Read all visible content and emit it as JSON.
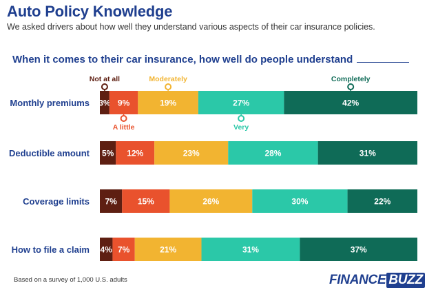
{
  "header": {
    "title": "Auto Policy Knowledge",
    "subtitle": "We asked drivers about how well they understand various aspects of their car insurance policies.",
    "question": "When it comes to their car insurance, how well do people understand"
  },
  "footer": {
    "footnote": "Based on a survey of 1,000 U.S. adults",
    "logo_part1": "FINANCE",
    "logo_part2": "BUZZ"
  },
  "colors": {
    "title": "#1f3f8f",
    "Not at all": "#5e1f12",
    "A little": "#e9522d",
    "Moderately": "#f2b431",
    "Very": "#2bc8a8",
    "Completely": "#0f6b57"
  },
  "chart_data": {
    "type": "bar",
    "orientation": "horizontal",
    "stacked": true,
    "unit": "%",
    "categories": [
      "Monthly premiums",
      "Deductible amount",
      "Coverage limits",
      "How to file a claim"
    ],
    "series": [
      {
        "name": "Not at all",
        "values": [
          3,
          5,
          7,
          4
        ]
      },
      {
        "name": "A little",
        "values": [
          9,
          12,
          15,
          7
        ]
      },
      {
        "name": "Moderately",
        "values": [
          19,
          23,
          26,
          21
        ]
      },
      {
        "name": "Very",
        "values": [
          27,
          28,
          30,
          31
        ]
      },
      {
        "name": "Completely",
        "values": [
          42,
          31,
          22,
          37
        ]
      }
    ],
    "legend": "annotated on first bar",
    "grid": false
  }
}
